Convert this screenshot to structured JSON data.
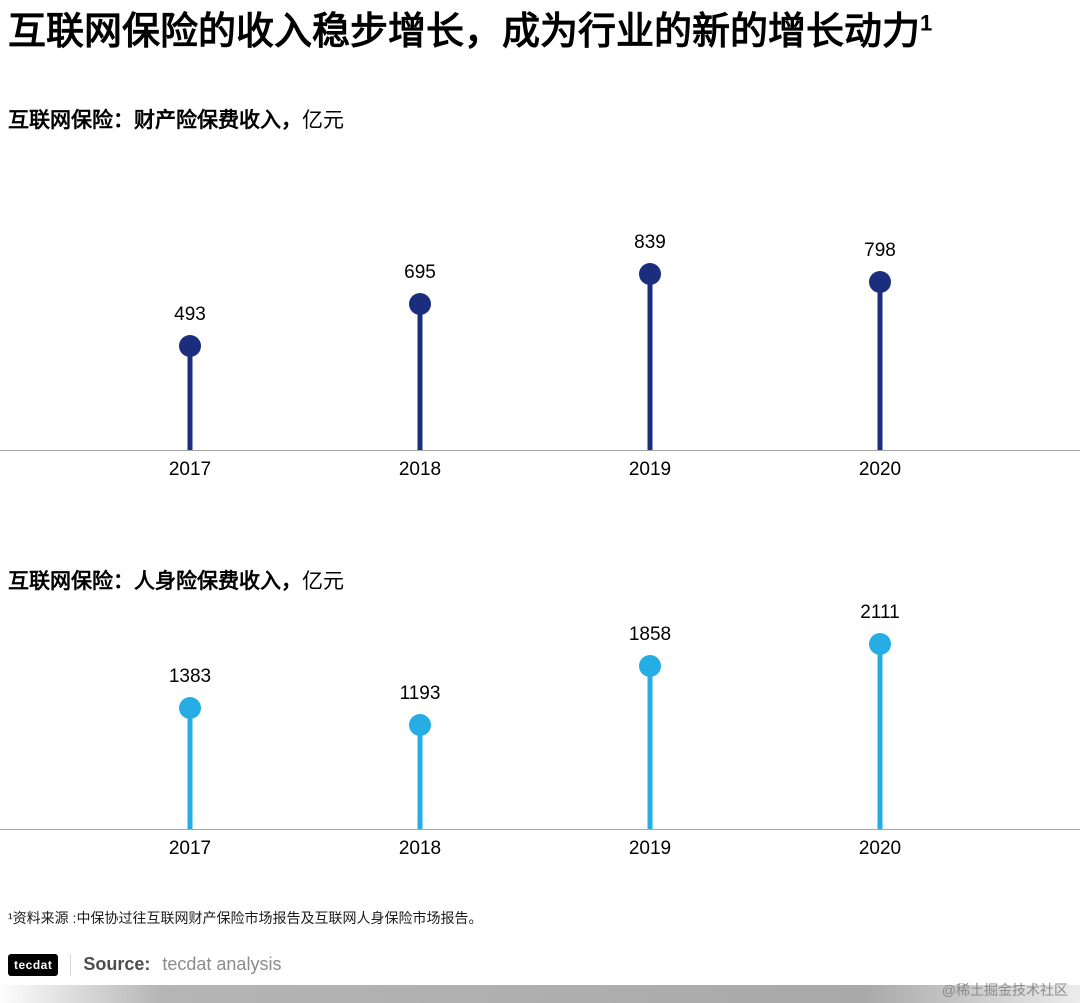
{
  "page": {
    "title": "互联网保险的收入稳步增长，成为行业的新的增长动力",
    "title_superscript": "1",
    "footnote": "¹资料来源 :中保协过往互联网财产保险市场报告及互联网人身保险市场报告。",
    "footer": {
      "logo_text": "tecdat",
      "source_label": "Source:",
      "source_text": "tecdat analysis"
    },
    "watermark": "@稀土掘金技术社区"
  },
  "chart_data": [
    {
      "type": "lollipop",
      "title_bold": "互联网保险：财产险保费收入，",
      "title_regular": "亿元",
      "categories": [
        "2017",
        "2018",
        "2019",
        "2020"
      ],
      "values": [
        493,
        695,
        839,
        798
      ],
      "color": "#1b2d7d",
      "ylim": [
        0,
        1000
      ],
      "grid": false,
      "legend": false
    },
    {
      "type": "lollipop",
      "title_bold": "互联网保险：人身险保费收入，",
      "title_regular": "亿元",
      "categories": [
        "2017",
        "2018",
        "2019",
        "2020"
      ],
      "values": [
        1383,
        1193,
        1858,
        2111
      ],
      "color": "#25ade4",
      "ylim": [
        0,
        2400
      ],
      "grid": false,
      "legend": false
    }
  ]
}
